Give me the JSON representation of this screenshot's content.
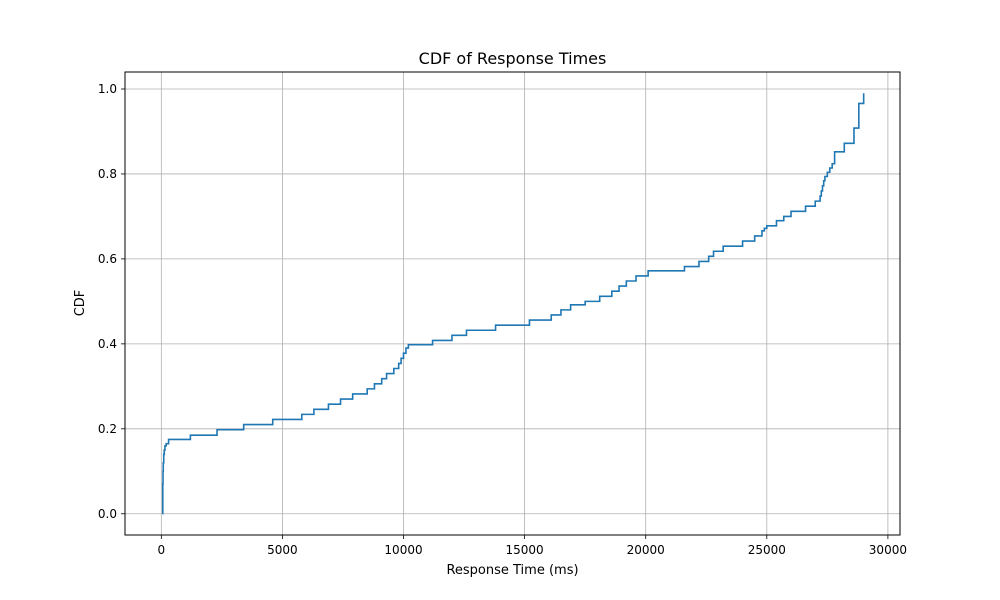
{
  "chart_data": {
    "type": "line",
    "title": "CDF of Response Times",
    "xlabel": "Response Time (ms)",
    "ylabel": "CDF",
    "xlim": [
      -1500,
      30500
    ],
    "ylim": [
      -0.05,
      1.04
    ],
    "xticks": [
      0,
      5000,
      10000,
      15000,
      20000,
      25000,
      30000
    ],
    "xtick_labels": [
      "0",
      "5000",
      "10000",
      "15000",
      "20000",
      "25000",
      "30000"
    ],
    "yticks": [
      0.0,
      0.2,
      0.4,
      0.6,
      0.8,
      1.0
    ],
    "ytick_labels": [
      "0.0",
      "0.2",
      "0.4",
      "0.6",
      "0.8",
      "1.0"
    ],
    "grid": true,
    "line_color": "#1f77b4",
    "series": [
      {
        "step": "post",
        "x": [
          50,
          60,
          70,
          80,
          100,
          120,
          150,
          200,
          300,
          1200,
          2300,
          3400,
          4600,
          5800,
          6300,
          6900,
          7400,
          7900,
          8500,
          8800,
          9100,
          9300,
          9600,
          9800,
          9900,
          10000,
          10100,
          10200,
          11200,
          12000,
          12600,
          13800,
          15200,
          16100,
          16500,
          16900,
          17500,
          18100,
          18600,
          18900,
          19200,
          19600,
          20100,
          21600,
          22200,
          22600,
          22800,
          23200,
          24000,
          24500,
          24800,
          24900,
          25000,
          25400,
          25700,
          26000,
          26600,
          27000,
          27200,
          27250,
          27300,
          27350,
          27400,
          27500,
          27600,
          27700,
          27800,
          28200,
          28600,
          28700,
          28800,
          29000
        ],
        "y": [
          0.0,
          0.07,
          0.1,
          0.12,
          0.14,
          0.15,
          0.16,
          0.165,
          0.175,
          0.185,
          0.198,
          0.21,
          0.222,
          0.234,
          0.246,
          0.258,
          0.27,
          0.282,
          0.294,
          0.306,
          0.318,
          0.33,
          0.342,
          0.354,
          0.366,
          0.378,
          0.39,
          0.398,
          0.408,
          0.42,
          0.432,
          0.444,
          0.456,
          0.468,
          0.48,
          0.492,
          0.5,
          0.512,
          0.524,
          0.536,
          0.548,
          0.56,
          0.572,
          0.582,
          0.594,
          0.606,
          0.618,
          0.63,
          0.642,
          0.654,
          0.666,
          0.672,
          0.678,
          0.69,
          0.7,
          0.712,
          0.724,
          0.736,
          0.748,
          0.76,
          0.772,
          0.784,
          0.794,
          0.804,
          0.814,
          0.824,
          0.852,
          0.872,
          0.908,
          0.908,
          0.966,
          0.99
        ]
      }
    ]
  }
}
